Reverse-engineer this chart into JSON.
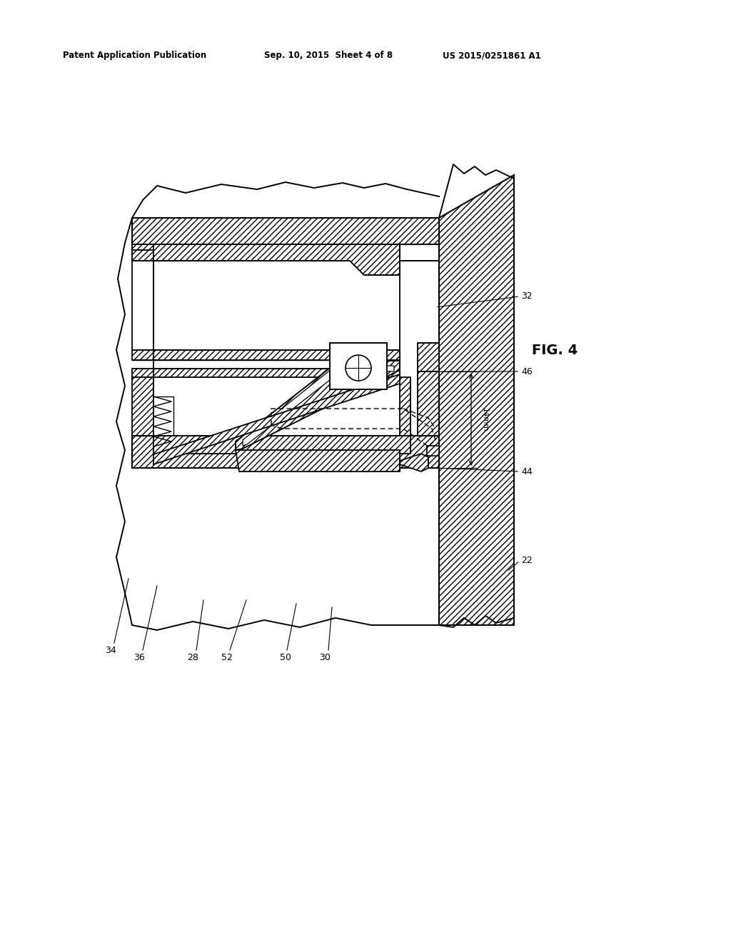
{
  "bg_color": "#ffffff",
  "header_left": "Patent Application Publication",
  "header_center": "Sep. 10, 2015  Sheet 4 of 8",
  "header_right": "US 2015/0251861 A1",
  "fig_label": "FIG. 4",
  "dimension_label": "14mm",
  "labels": [
    "22",
    "28",
    "30",
    "32",
    "34",
    "36",
    "44",
    "46",
    "50",
    "52"
  ]
}
